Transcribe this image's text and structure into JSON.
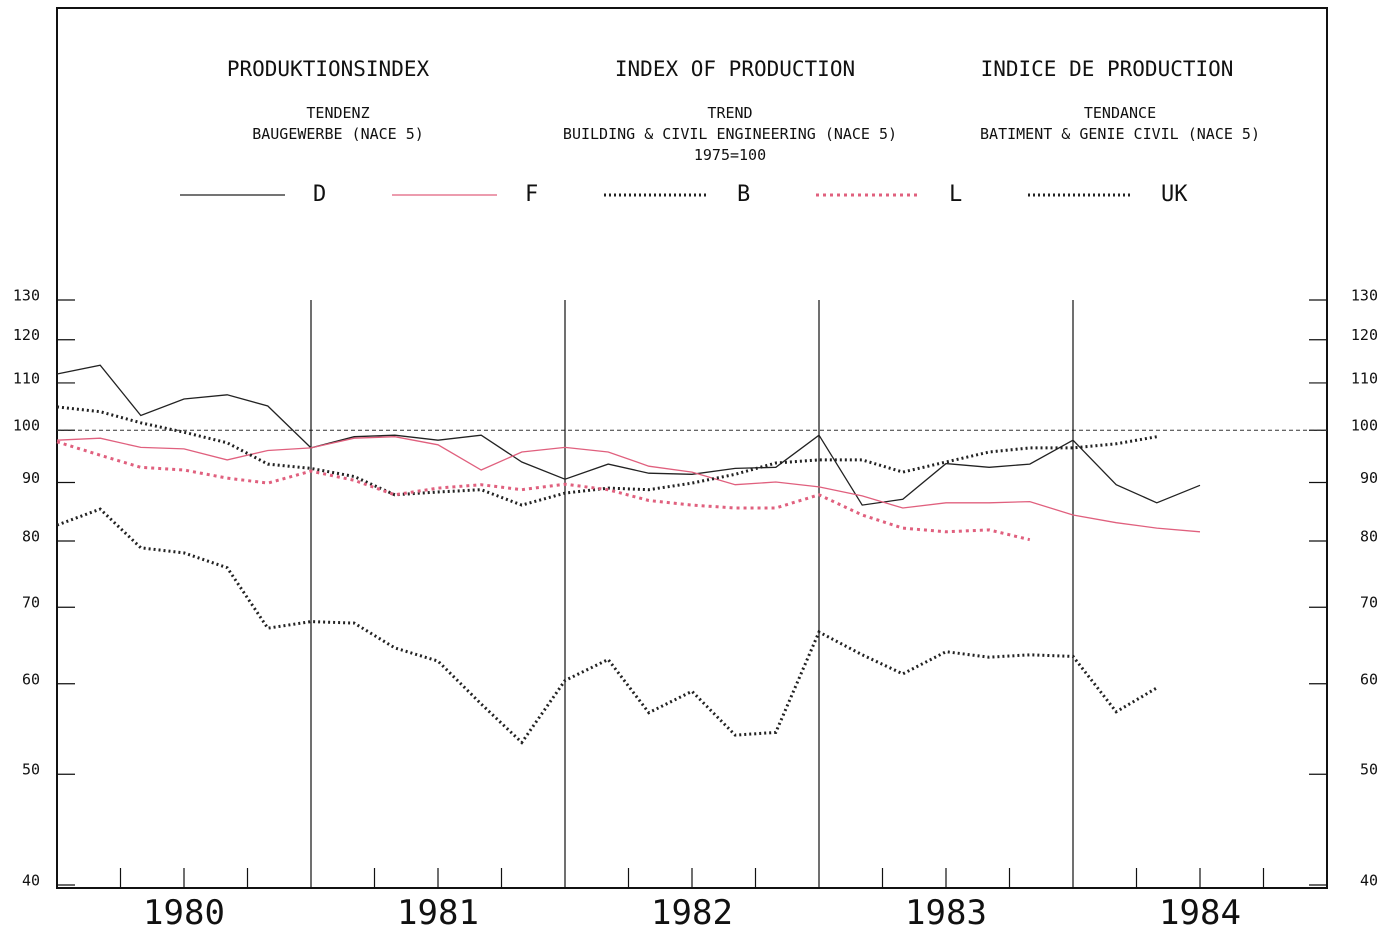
{
  "chart_data": {
    "type": "line",
    "title_blocks": [
      {
        "title": "PRODUKTIONSINDEX",
        "lines": [
          "TENDENZ",
          "BAUGEWERBE (NACE 5)"
        ]
      },
      {
        "title": "INDEX OF PRODUCTION",
        "lines": [
          "TREND",
          "BUILDING & CIVIL ENGINEERING (NACE 5)",
          "1975=100"
        ]
      },
      {
        "title": "INDICE DE PRODUCTION",
        "lines": [
          "TENDANCE",
          "BATIMENT & GENIE CIVIL (NACE 5)"
        ]
      }
    ],
    "x": [
      1980,
      1980.17,
      1980.33,
      1980.5,
      1980.67,
      1980.83,
      1981,
      1981.17,
      1981.33,
      1981.5,
      1981.67,
      1981.83,
      1982,
      1982.17,
      1982.33,
      1982.5,
      1982.67,
      1982.83,
      1983,
      1983.17,
      1983.33,
      1983.5,
      1983.67,
      1983.83,
      1984,
      1984.17,
      1984.33,
      1984.5
    ],
    "series": [
      {
        "name": "D",
        "color": "#222222",
        "style": "solid",
        "values": [
          112,
          114,
          103,
          106.5,
          107.4,
          105,
          96.5,
          98.7,
          99,
          98,
          99,
          93.8,
          90.6,
          93.4,
          91.7,
          91.5,
          92.6,
          92.8,
          99,
          86,
          87,
          93.5,
          92.8,
          93.4,
          98,
          89.6,
          86.4,
          89.5
        ]
      },
      {
        "name": "F",
        "color": "#e0607e",
        "style": "solid",
        "values": [
          98,
          98.4,
          96.6,
          96.3,
          94.2,
          96,
          96.5,
          98.4,
          98.7,
          97.1,
          92.3,
          95.7,
          96.6,
          95.7,
          93,
          91.9,
          89.6,
          90.1,
          89.2,
          87.6,
          85.5,
          86.4,
          86.4,
          86.6,
          84.3,
          83,
          82.1,
          81.5
        ]
      },
      {
        "name": "B",
        "color": "#222222",
        "style": "dotted",
        "values": [
          104.8,
          103.8,
          101.5,
          99.6,
          97.5,
          93.4,
          92.6,
          91.1,
          87.8,
          88.3,
          88.7,
          86,
          88.1,
          89,
          88.7,
          89.9,
          91.5,
          93.6,
          94.2,
          94.2,
          91.9,
          93.8,
          95.7,
          96.5,
          96.5,
          97.3,
          98.7,
          null
        ]
      },
      {
        "name": "L",
        "color": "#e0607e",
        "style": "dotted",
        "values": [
          97.7,
          95.1,
          92.8,
          92.3,
          90.8,
          89.9,
          92.1,
          90.4,
          87.8,
          89,
          89.6,
          88.7,
          89.7,
          88.7,
          86.8,
          86,
          85.5,
          85.5,
          87.8,
          84.3,
          82.1,
          81.5,
          81.8,
          80.2,
          null,
          null,
          null,
          null
        ]
      },
      {
        "name": "UK",
        "color": "#222222",
        "style": "dotted",
        "values": [
          82.6,
          85.3,
          78.9,
          78.1,
          75.8,
          67.1,
          68,
          67.8,
          64.5,
          62.8,
          57.6,
          53.3,
          60.4,
          63,
          56.6,
          59.1,
          54.1,
          54.4,
          66.6,
          63.6,
          61.2,
          64,
          63.3,
          63.6,
          63.4,
          56.7,
          59.5,
          null
        ]
      }
    ],
    "xlim": [
      1980,
      1985
    ],
    "xticks": [
      {
        "value": 1980.5,
        "label": "1980"
      },
      {
        "value": 1981.5,
        "label": "1981"
      },
      {
        "value": 1982.5,
        "label": "1982"
      },
      {
        "value": 1983.5,
        "label": "1983"
      },
      {
        "value": 1984.5,
        "label": "1984"
      }
    ],
    "xminorticks": [
      1980.25,
      1980.5,
      1980.75,
      1981.25,
      1981.5,
      1981.75,
      1982.25,
      1982.5,
      1982.75,
      1983.25,
      1983.5,
      1983.75,
      1984.25,
      1984.5,
      1984.75
    ],
    "vlines": [
      1981,
      1982,
      1983,
      1984
    ],
    "ylim": [
      40,
      130
    ],
    "yticks": [
      40,
      50,
      60,
      70,
      80,
      90,
      100,
      110,
      120,
      130
    ],
    "log_scale": true,
    "reference_line": 100,
    "legend": "top"
  }
}
